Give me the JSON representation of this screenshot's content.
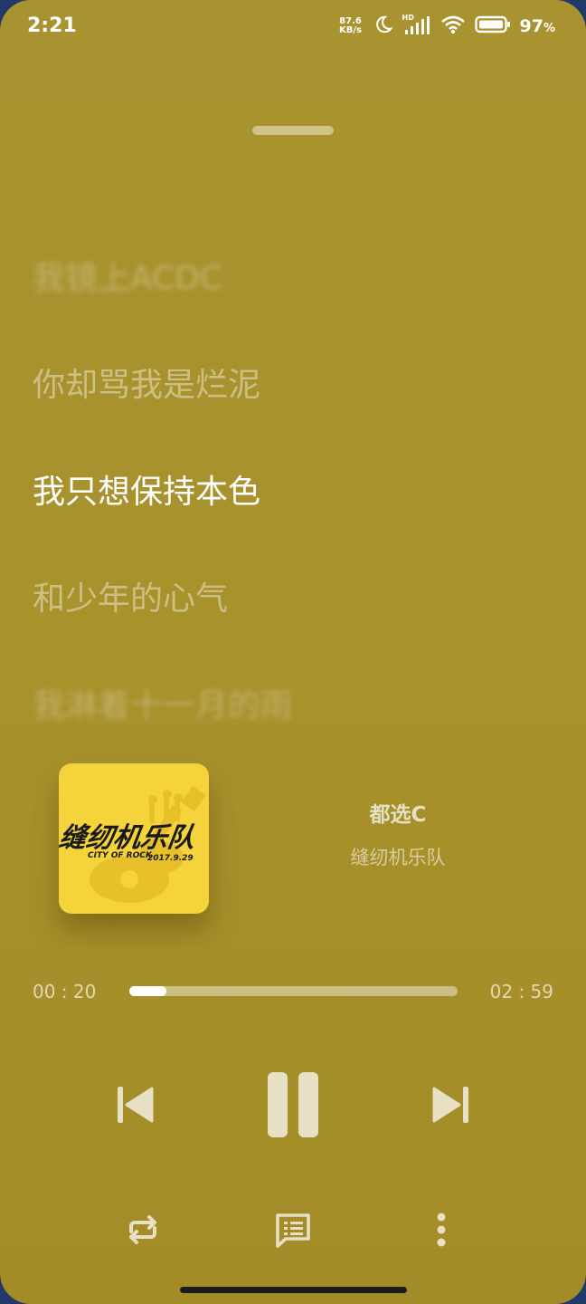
{
  "status_bar": {
    "time": "2:21",
    "network_speed_value": "87.6",
    "network_speed_unit": "KB/s",
    "hd_label": "HD",
    "battery_percent": "97",
    "battery_percent_sign": "%"
  },
  "lyrics": [
    {
      "text": "",
      "state": "far"
    },
    {
      "text": "我镜上ACDC",
      "state": "blurred"
    },
    {
      "text": "你却骂我是烂泥",
      "state": "near"
    },
    {
      "text": "我只想保持本色",
      "state": "current"
    },
    {
      "text": "和少年的心气",
      "state": "near"
    },
    {
      "text": "我淋着十一月的雨",
      "state": "blurred"
    }
  ],
  "now_playing": {
    "title": "都选C",
    "artist": "缝纫机乐队",
    "cover": {
      "art_title": "缝纫机乐队",
      "art_subtitle": "CITY OF ROCK",
      "art_date": "2017.9.29",
      "background_color": "#f5d33a"
    }
  },
  "progress": {
    "elapsed": "00 : 20",
    "total": "02 : 59",
    "fraction": 0.112
  },
  "controls": {
    "previous_icon": "skip-previous-icon",
    "play_pause_icon": "pause-icon",
    "next_icon": "skip-next-icon",
    "repeat_icon": "repeat-icon",
    "lyrics_icon": "lyrics-icon",
    "more_icon": "more-vertical-icon"
  },
  "colors": {
    "background": "#a8922c",
    "icon": "#e8e0c4"
  }
}
